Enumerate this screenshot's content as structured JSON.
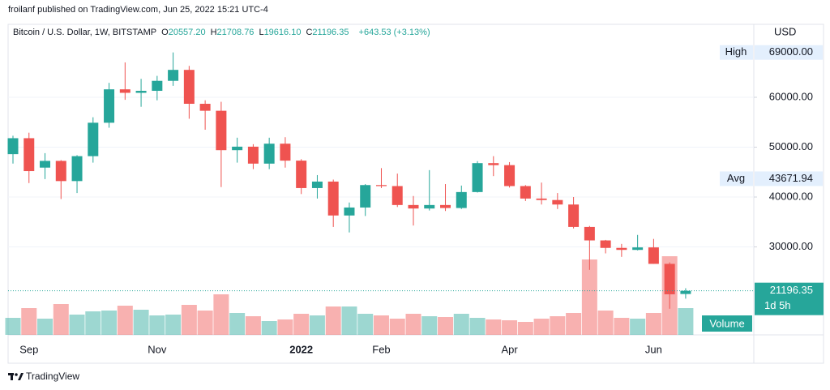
{
  "header": {
    "byline": "froilanf published on TradingView.com, Jun 25, 2022 15:21 UTC-4"
  },
  "chart_data": {
    "type": "candlestick",
    "title": "Bitcoin / U.S. Dollar, 1W, BITSTAMP",
    "legend_values": [
      {
        "key": "O",
        "value": "20557.20"
      },
      {
        "key": "H",
        "value": "21708.76"
      },
      {
        "key": "L",
        "value": "19616.10"
      },
      {
        "key": "C",
        "value": "21196.35"
      }
    ],
    "change": "+643.53 (+3.13%)",
    "currency": "USD",
    "categories": [
      null,
      "Sep",
      null,
      null,
      null,
      null,
      null,
      null,
      null,
      "Nov",
      null,
      null,
      null,
      null,
      null,
      null,
      null,
      null,
      "2022",
      null,
      null,
      null,
      null,
      "Feb",
      null,
      null,
      null,
      null,
      null,
      null,
      null,
      "Apr",
      null,
      null,
      null,
      null,
      null,
      null,
      null,
      null,
      "Jun",
      null,
      null
    ],
    "open": [
      48600,
      51800,
      45900,
      47250,
      43200,
      48200,
      54900,
      61600,
      60900,
      61300,
      63300,
      65500,
      58700,
      57300,
      49400,
      50100,
      46700,
      50700,
      47300,
      41800,
      43100,
      36300,
      37900,
      42400,
      42200,
      38400,
      37700,
      38400,
      37800,
      41000,
      46800,
      46400,
      42200,
      39700,
      39400,
      38500,
      34000,
      31300,
      29800,
      29400,
      29900,
      26600,
      20557.2
    ],
    "high": [
      52300,
      52900,
      48800,
      47400,
      48400,
      56000,
      62900,
      67000,
      63700,
      64300,
      69000,
      66300,
      59400,
      59100,
      51900,
      50600,
      51900,
      52000,
      47600,
      44400,
      43500,
      38900,
      42600,
      45800,
      44700,
      40200,
      45400,
      42600,
      42300,
      47200,
      48200,
      47000,
      42400,
      42900,
      40800,
      40000,
      34200,
      31400,
      30600,
      32400,
      31600,
      26900,
      21708.76
    ],
    "low": [
      46700,
      42800,
      43600,
      39600,
      40800,
      46900,
      53900,
      59500,
      58100,
      59400,
      62300,
      55700,
      53500,
      42000,
      46900,
      45600,
      45600,
      45900,
      40600,
      39700,
      34000,
      32900,
      36200,
      41800,
      38000,
      34300,
      37300,
      37200,
      37600,
      40900,
      44200,
      41900,
      39200,
      38500,
      37600,
      33700,
      25400,
      28700,
      28000,
      29300,
      26600,
      17600,
      19616.1
    ],
    "close": [
      51800,
      45200,
      47250,
      43200,
      48200,
      54900,
      61600,
      60900,
      61300,
      63300,
      65500,
      58700,
      57300,
      49400,
      50100,
      46700,
      50700,
      47300,
      41800,
      43100,
      36300,
      37900,
      42400,
      42200,
      38400,
      37700,
      38400,
      37800,
      41000,
      46800,
      46400,
      42200,
      39700,
      39400,
      38500,
      34000,
      31300,
      29800,
      29400,
      29900,
      26600,
      20500,
      21196.35
    ],
    "volume": [
      21,
      33,
      20,
      38,
      25,
      29,
      30,
      36,
      31,
      24,
      25,
      37,
      30,
      50,
      27,
      23,
      17,
      19,
      26,
      24,
      35,
      35,
      26,
      24,
      20,
      26,
      23,
      22,
      26,
      21,
      19,
      18,
      16,
      20,
      23,
      27,
      93,
      30,
      21,
      20,
      27,
      97,
      33
    ],
    "volume_label": "Volume",
    "up_color": "#26a69a",
    "down_color": "#ef5350",
    "ylim": [
      12360,
      72360
    ],
    "yticks": [
      {
        "value": 30000,
        "label": "30000.00"
      },
      {
        "value": 40000,
        "label": "40000.00"
      },
      {
        "value": 50000,
        "label": "50000.00"
      },
      {
        "value": 60000,
        "label": "60000.00"
      }
    ],
    "grid": true,
    "markers": [
      {
        "name": "High",
        "value": 69000,
        "label": "69000.00"
      },
      {
        "name": "Avg",
        "value": 43671.94,
        "label": "43671.94"
      }
    ],
    "last_price": {
      "value": 21196.35,
      "label": "21196.35",
      "countdown": "1d 5h"
    }
  },
  "footer": {
    "brand": "TradingView"
  }
}
